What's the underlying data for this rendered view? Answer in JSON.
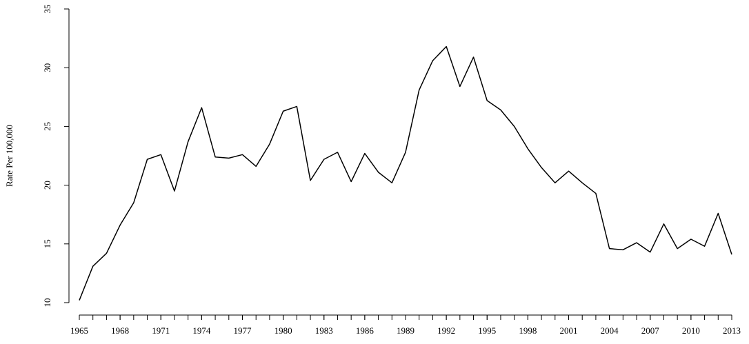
{
  "chart_data": {
    "type": "line",
    "y_label": "Rate Per 100,000",
    "color": "#000000",
    "x": [
      1965,
      1966,
      1967,
      1968,
      1969,
      1970,
      1971,
      1972,
      1973,
      1974,
      1975,
      1976,
      1977,
      1978,
      1979,
      1980,
      1981,
      1982,
      1983,
      1984,
      1985,
      1986,
      1987,
      1988,
      1989,
      1990,
      1991,
      1992,
      1993,
      1994,
      1995,
      1996,
      1997,
      1998,
      1999,
      2000,
      2001,
      2002,
      2003,
      2004,
      2005,
      2006,
      2007,
      2008,
      2009,
      2010,
      2011,
      2012,
      2013
    ],
    "values": [
      10.2,
      13.1,
      14.2,
      16.6,
      18.5,
      22.2,
      22.6,
      19.5,
      23.7,
      26.6,
      22.4,
      22.3,
      22.6,
      21.6,
      23.5,
      26.3,
      26.7,
      20.4,
      22.2,
      22.8,
      20.3,
      22.7,
      21.1,
      20.2,
      22.8,
      28.1,
      30.6,
      31.8,
      28.4,
      30.9,
      27.2,
      26.4,
      25.0,
      23.1,
      21.5,
      20.2,
      21.2,
      20.2,
      19.3,
      14.6,
      14.5,
      15.1,
      14.3,
      16.7,
      14.6,
      15.4,
      14.8,
      17.6,
      14.1
    ],
    "xlim": [
      1965,
      2013
    ],
    "xticks": [
      1965,
      1968,
      1971,
      1974,
      1977,
      1980,
      1983,
      1986,
      1989,
      1992,
      1995,
      1998,
      2001,
      2004,
      2007,
      2010,
      2013
    ],
    "ylim": [
      10,
      35
    ],
    "yticks": [
      10,
      15,
      20,
      25,
      30,
      35
    ],
    "grid": false
  }
}
